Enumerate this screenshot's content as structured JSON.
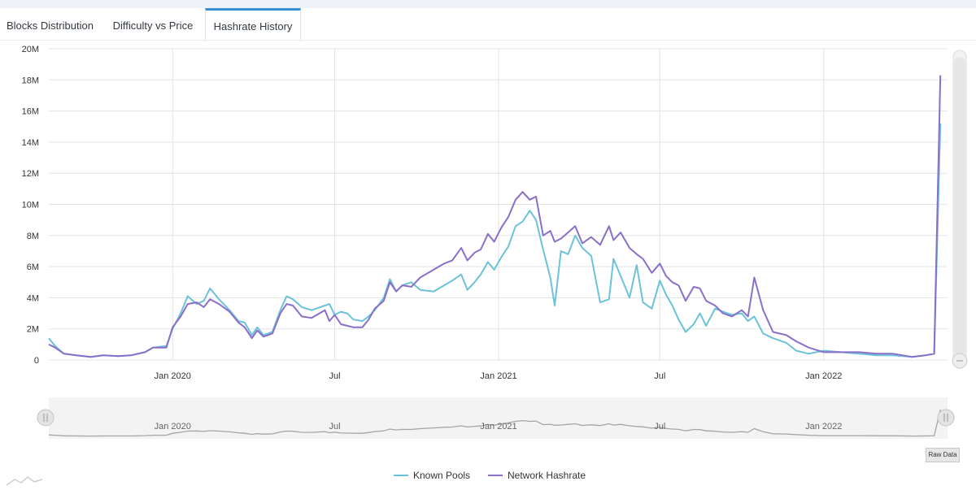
{
  "tabs": [
    {
      "label": "Blocks Distribution",
      "active": false
    },
    {
      "label": "Difficulty vs Price",
      "active": false
    },
    {
      "label": "Hashrate History",
      "active": true
    }
  ],
  "raw_data_label": "Raw Data",
  "colors": {
    "known_pools": "#6cc2d8",
    "network_hashrate": "#8a6fc9",
    "accent": "#3a8fd0"
  },
  "chart_data": {
    "type": "line",
    "title": "",
    "xlabel": "",
    "ylabel": "",
    "y_ticks": [
      "0",
      "2M",
      "4M",
      "6M",
      "8M",
      "10M",
      "12M",
      "14M",
      "16M",
      "18M",
      "20M"
    ],
    "ylim": [
      0,
      20000000
    ],
    "x_ticks": [
      {
        "label": "Jan 2020",
        "date": "2020-01-01"
      },
      {
        "label": "Jul",
        "date": "2020-07-01"
      },
      {
        "label": "Jan 2021",
        "date": "2021-01-01"
      },
      {
        "label": "Jul",
        "date": "2021-07-01"
      },
      {
        "label": "Jan 2022",
        "date": "2022-01-01"
      }
    ],
    "xlim": [
      "2019-08-15",
      "2022-05-20"
    ],
    "grid": true,
    "legend": "bottom-center",
    "series": [
      {
        "name": "Known Pools",
        "points": [
          [
            "2019-08-15",
            1.4
          ],
          [
            "2019-08-22",
            0.9
          ],
          [
            "2019-09-01",
            0.4
          ],
          [
            "2019-09-15",
            0.3
          ],
          [
            "2019-10-01",
            0.2
          ],
          [
            "2019-10-15",
            0.3
          ],
          [
            "2019-11-01",
            0.25
          ],
          [
            "2019-11-15",
            0.3
          ],
          [
            "2019-12-01",
            0.5
          ],
          [
            "2019-12-10",
            0.8
          ],
          [
            "2019-12-25",
            0.9
          ],
          [
            "2020-01-01",
            2.0
          ],
          [
            "2020-01-10",
            3.0
          ],
          [
            "2020-01-18",
            4.1
          ],
          [
            "2020-01-28",
            3.6
          ],
          [
            "2020-02-05",
            3.8
          ],
          [
            "2020-02-12",
            4.6
          ],
          [
            "2020-02-22",
            3.9
          ],
          [
            "2020-03-05",
            3.2
          ],
          [
            "2020-03-15",
            2.5
          ],
          [
            "2020-03-22",
            2.4
          ],
          [
            "2020-03-30",
            1.6
          ],
          [
            "2020-04-05",
            2.1
          ],
          [
            "2020-04-12",
            1.6
          ],
          [
            "2020-04-22",
            1.8
          ],
          [
            "2020-05-01",
            3.2
          ],
          [
            "2020-05-08",
            4.1
          ],
          [
            "2020-05-15",
            3.9
          ],
          [
            "2020-05-25",
            3.4
          ],
          [
            "2020-06-05",
            3.2
          ],
          [
            "2020-06-20",
            3.5
          ],
          [
            "2020-06-25",
            3.6
          ],
          [
            "2020-07-01",
            2.9
          ],
          [
            "2020-07-08",
            3.1
          ],
          [
            "2020-07-15",
            3.0
          ],
          [
            "2020-07-22",
            2.6
          ],
          [
            "2020-08-01",
            2.5
          ],
          [
            "2020-08-08",
            2.8
          ],
          [
            "2020-08-15",
            3.2
          ],
          [
            "2020-08-25",
            4.0
          ],
          [
            "2020-09-01",
            5.2
          ],
          [
            "2020-09-08",
            4.4
          ],
          [
            "2020-09-15",
            4.8
          ],
          [
            "2020-09-25",
            5.0
          ],
          [
            "2020-10-05",
            4.5
          ],
          [
            "2020-10-20",
            4.4
          ],
          [
            "2020-11-01",
            4.8
          ],
          [
            "2020-11-10",
            5.1
          ],
          [
            "2020-11-20",
            5.5
          ],
          [
            "2020-11-27",
            4.5
          ],
          [
            "2020-12-05",
            5.0
          ],
          [
            "2020-12-12",
            5.5
          ],
          [
            "2020-12-20",
            6.3
          ],
          [
            "2020-12-27",
            5.8
          ],
          [
            "2021-01-04",
            6.6
          ],
          [
            "2021-01-12",
            7.3
          ],
          [
            "2021-01-20",
            8.6
          ],
          [
            "2021-01-28",
            8.9
          ],
          [
            "2021-02-05",
            9.6
          ],
          [
            "2021-02-12",
            9.0
          ],
          [
            "2021-02-20",
            7.1
          ],
          [
            "2021-02-28",
            5.3
          ],
          [
            "2021-03-05",
            3.5
          ],
          [
            "2021-03-12",
            7.0
          ],
          [
            "2021-03-20",
            6.8
          ],
          [
            "2021-03-28",
            8.0
          ],
          [
            "2021-04-05",
            7.2
          ],
          [
            "2021-04-15",
            6.7
          ],
          [
            "2021-04-25",
            3.7
          ],
          [
            "2021-05-05",
            3.9
          ],
          [
            "2021-05-10",
            6.5
          ],
          [
            "2021-05-18",
            5.4
          ],
          [
            "2021-05-28",
            4.0
          ],
          [
            "2021-06-05",
            6.1
          ],
          [
            "2021-06-12",
            3.7
          ],
          [
            "2021-06-22",
            3.3
          ],
          [
            "2021-07-01",
            5.1
          ],
          [
            "2021-07-08",
            4.2
          ],
          [
            "2021-07-15",
            3.5
          ],
          [
            "2021-07-22",
            2.6
          ],
          [
            "2021-07-30",
            1.8
          ],
          [
            "2021-08-08",
            2.3
          ],
          [
            "2021-08-15",
            3.0
          ],
          [
            "2021-08-22",
            2.2
          ],
          [
            "2021-09-01",
            3.3
          ],
          [
            "2021-09-10",
            3.1
          ],
          [
            "2021-09-20",
            2.9
          ],
          [
            "2021-10-01",
            3.0
          ],
          [
            "2021-10-08",
            2.5
          ],
          [
            "2021-10-15",
            2.8
          ],
          [
            "2021-10-25",
            1.7
          ],
          [
            "2021-11-05",
            1.4
          ],
          [
            "2021-11-20",
            1.1
          ],
          [
            "2021-12-01",
            0.6
          ],
          [
            "2021-12-15",
            0.4
          ],
          [
            "2022-01-01",
            0.6
          ],
          [
            "2022-01-20",
            0.5
          ],
          [
            "2022-02-10",
            0.4
          ],
          [
            "2022-03-01",
            0.3
          ],
          [
            "2022-03-20",
            0.3
          ],
          [
            "2022-04-10",
            0.2
          ],
          [
            "2022-04-25",
            0.3
          ],
          [
            "2022-05-05",
            0.4
          ],
          [
            "2022-05-12",
            15.2
          ]
        ]
      },
      {
        "name": "Network Hashrate",
        "points": [
          [
            "2019-08-15",
            1.0
          ],
          [
            "2019-08-22",
            0.8
          ],
          [
            "2019-09-01",
            0.4
          ],
          [
            "2019-09-15",
            0.3
          ],
          [
            "2019-10-01",
            0.2
          ],
          [
            "2019-10-15",
            0.3
          ],
          [
            "2019-11-01",
            0.25
          ],
          [
            "2019-11-15",
            0.3
          ],
          [
            "2019-12-01",
            0.5
          ],
          [
            "2019-12-10",
            0.8
          ],
          [
            "2019-12-25",
            0.8
          ],
          [
            "2020-01-01",
            2.1
          ],
          [
            "2020-01-10",
            2.8
          ],
          [
            "2020-01-18",
            3.6
          ],
          [
            "2020-01-28",
            3.7
          ],
          [
            "2020-02-05",
            3.4
          ],
          [
            "2020-02-12",
            3.9
          ],
          [
            "2020-02-22",
            3.6
          ],
          [
            "2020-03-05",
            3.1
          ],
          [
            "2020-03-15",
            2.4
          ],
          [
            "2020-03-22",
            2.1
          ],
          [
            "2020-03-30",
            1.4
          ],
          [
            "2020-04-05",
            1.9
          ],
          [
            "2020-04-12",
            1.5
          ],
          [
            "2020-04-22",
            1.7
          ],
          [
            "2020-05-01",
            3.0
          ],
          [
            "2020-05-08",
            3.6
          ],
          [
            "2020-05-15",
            3.5
          ],
          [
            "2020-05-25",
            2.8
          ],
          [
            "2020-06-05",
            2.7
          ],
          [
            "2020-06-20",
            3.2
          ],
          [
            "2020-06-25",
            2.5
          ],
          [
            "2020-07-01",
            2.9
          ],
          [
            "2020-07-08",
            2.3
          ],
          [
            "2020-07-15",
            2.2
          ],
          [
            "2020-07-22",
            2.1
          ],
          [
            "2020-08-01",
            2.1
          ],
          [
            "2020-08-08",
            2.6
          ],
          [
            "2020-08-15",
            3.3
          ],
          [
            "2020-08-25",
            3.8
          ],
          [
            "2020-09-01",
            5.0
          ],
          [
            "2020-09-08",
            4.4
          ],
          [
            "2020-09-15",
            4.8
          ],
          [
            "2020-09-25",
            4.7
          ],
          [
            "2020-10-05",
            5.3
          ],
          [
            "2020-10-20",
            5.8
          ],
          [
            "2020-11-01",
            6.2
          ],
          [
            "2020-11-10",
            6.4
          ],
          [
            "2020-11-20",
            7.2
          ],
          [
            "2020-11-27",
            6.4
          ],
          [
            "2020-12-05",
            6.9
          ],
          [
            "2020-12-12",
            7.1
          ],
          [
            "2020-12-20",
            8.1
          ],
          [
            "2020-12-27",
            7.6
          ],
          [
            "2021-01-04",
            8.5
          ],
          [
            "2021-01-12",
            9.2
          ],
          [
            "2021-01-20",
            10.3
          ],
          [
            "2021-01-28",
            10.8
          ],
          [
            "2021-02-05",
            10.3
          ],
          [
            "2021-02-12",
            10.5
          ],
          [
            "2021-02-20",
            8.0
          ],
          [
            "2021-02-28",
            8.3
          ],
          [
            "2021-03-05",
            7.6
          ],
          [
            "2021-03-12",
            7.8
          ],
          [
            "2021-03-20",
            8.2
          ],
          [
            "2021-03-28",
            8.6
          ],
          [
            "2021-04-05",
            7.5
          ],
          [
            "2021-04-15",
            7.9
          ],
          [
            "2021-04-25",
            7.4
          ],
          [
            "2021-05-05",
            8.6
          ],
          [
            "2021-05-10",
            7.7
          ],
          [
            "2021-05-18",
            8.2
          ],
          [
            "2021-05-28",
            7.2
          ],
          [
            "2021-06-05",
            6.8
          ],
          [
            "2021-06-12",
            6.5
          ],
          [
            "2021-06-22",
            5.6
          ],
          [
            "2021-07-01",
            6.2
          ],
          [
            "2021-07-08",
            5.4
          ],
          [
            "2021-07-15",
            5.0
          ],
          [
            "2021-07-22",
            4.8
          ],
          [
            "2021-07-30",
            3.8
          ],
          [
            "2021-08-08",
            4.7
          ],
          [
            "2021-08-15",
            4.6
          ],
          [
            "2021-08-22",
            3.8
          ],
          [
            "2021-09-01",
            3.5
          ],
          [
            "2021-09-10",
            3.0
          ],
          [
            "2021-09-20",
            2.8
          ],
          [
            "2021-10-01",
            3.2
          ],
          [
            "2021-10-08",
            2.8
          ],
          [
            "2021-10-15",
            5.3
          ],
          [
            "2021-10-25",
            3.2
          ],
          [
            "2021-11-05",
            1.8
          ],
          [
            "2021-11-20",
            1.6
          ],
          [
            "2021-12-01",
            1.2
          ],
          [
            "2021-12-15",
            0.8
          ],
          [
            "2022-01-01",
            0.5
          ],
          [
            "2022-01-20",
            0.5
          ],
          [
            "2022-02-10",
            0.5
          ],
          [
            "2022-03-01",
            0.4
          ],
          [
            "2022-03-20",
            0.4
          ],
          [
            "2022-04-10",
            0.2
          ],
          [
            "2022-04-25",
            0.3
          ],
          [
            "2022-05-05",
            0.4
          ],
          [
            "2022-05-12",
            18.3
          ]
        ]
      }
    ]
  }
}
